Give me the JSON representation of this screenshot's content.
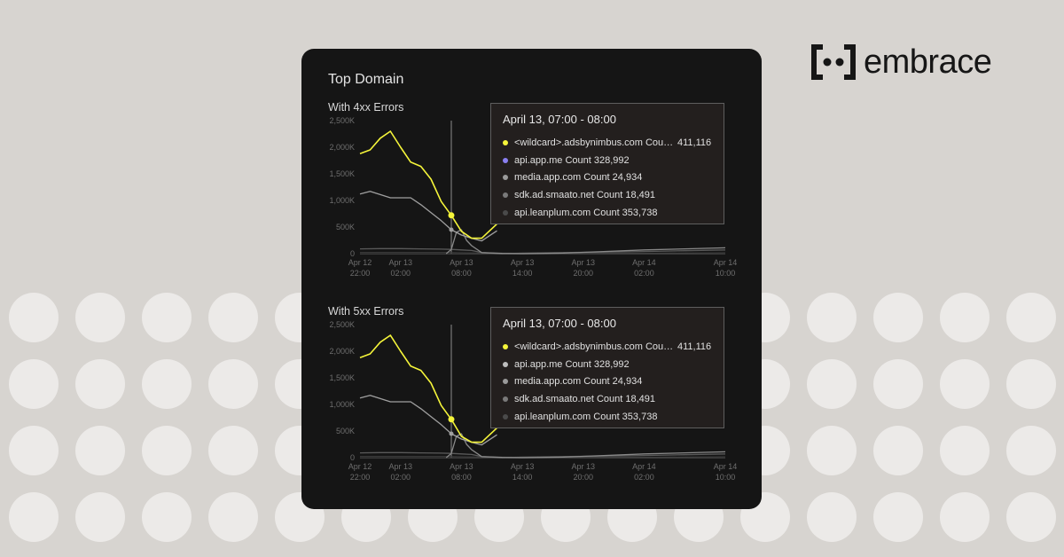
{
  "brand": {
    "name": "embrace",
    "logo_icon": "embrace-bracket-logo-icon"
  },
  "card": {
    "title": "Top Domain"
  },
  "panels": [
    {
      "label": "With 4xx Errors",
      "tooltip": {
        "title": "April 13, 07:00 - 08:00",
        "rows": [
          {
            "text": "<wildcard>.adsbynimbus.com Count 411,116",
            "extra": "411,116",
            "color": "#f5f53a"
          },
          {
            "text": "api.app.me Count 328,992",
            "extra": "",
            "color": "#8a7ff0"
          },
          {
            "text": "media.app.com Count 24,934",
            "extra": "",
            "color": "#9a9a9a"
          },
          {
            "text": "sdk.ad.smaato.net Count 18,491",
            "extra": "",
            "color": "#7a7a7a"
          },
          {
            "text": "api.leanplum.com Count 353,738",
            "extra": "",
            "color": "#4a4a4a"
          }
        ]
      }
    },
    {
      "label": "With 5xx Errors",
      "tooltip": {
        "title": "April 13, 07:00 - 08:00",
        "rows": [
          {
            "text": "<wildcard>.adsbynimbus.com Count 411,116",
            "extra": "411,116",
            "color": "#f5f53a"
          },
          {
            "text": "api.app.me Count 328,992",
            "extra": "",
            "color": "#bdbdbd"
          },
          {
            "text": "media.app.com Count 24,934",
            "extra": "",
            "color": "#9a9a9a"
          },
          {
            "text": "sdk.ad.smaato.net Count 18,491",
            "extra": "",
            "color": "#7a7a7a"
          },
          {
            "text": "api.leanplum.com Count 353,738",
            "extra": "",
            "color": "#4a4a4a"
          }
        ]
      }
    }
  ],
  "chart_data": [
    {
      "type": "line",
      "title": "With 4xx Errors",
      "ylim": [
        0,
        2500
      ],
      "y_ticks": [
        {
          "value": 0,
          "label": "0"
        },
        {
          "value": 500,
          "label": "500K"
        },
        {
          "value": 1000,
          "label": "1,000K"
        },
        {
          "value": 1500,
          "label": "1,500K"
        },
        {
          "value": 2000,
          "label": "2,000K"
        },
        {
          "value": 2500,
          "label": "2,500K"
        }
      ],
      "xlim": [
        0,
        36
      ],
      "x_ticks": [
        {
          "value": 0,
          "line1": "Apr 12",
          "line2": "22:00"
        },
        {
          "value": 4,
          "line1": "Apr 13",
          "line2": "02:00"
        },
        {
          "value": 10,
          "line1": "Apr 13",
          "line2": "08:00"
        },
        {
          "value": 16,
          "line1": "Apr 13",
          "line2": "14:00"
        },
        {
          "value": 22,
          "line1": "Apr 13",
          "line2": "20:00"
        },
        {
          "value": 28,
          "line1": "Apr 14",
          "line2": "02:00"
        },
        {
          "value": 36,
          "line1": "Apr 14",
          "line2": "10:00"
        }
      ],
      "highlight_x": 9,
      "series": [
        {
          "color": "#f5f53a",
          "x": [
            0,
            1,
            2,
            3,
            4,
            5,
            6,
            7,
            8,
            9,
            10,
            11,
            12,
            13.5
          ],
          "values": [
            1880,
            1950,
            2170,
            2300,
            2000,
            1720,
            1640,
            1400,
            980,
            720,
            420,
            290,
            290,
            560
          ]
        },
        {
          "color": "#a0a0a0",
          "x": [
            0,
            1,
            2,
            3,
            4,
            5,
            6,
            7,
            8,
            9,
            10,
            11,
            12,
            13.5
          ],
          "values": [
            1120,
            1170,
            1110,
            1050,
            1050,
            1050,
            920,
            770,
            620,
            450,
            350,
            290,
            240,
            430
          ]
        },
        {
          "color": "#8a8a8a",
          "x": [
            8.5,
            9,
            9.5,
            10,
            10.5,
            11,
            12,
            14,
            16,
            20,
            24,
            28,
            32,
            36
          ],
          "values": [
            0,
            80,
            400,
            450,
            250,
            150,
            20,
            5,
            0,
            10,
            40,
            70,
            90,
            110
          ]
        },
        {
          "color": "#5a5a5a",
          "x": [
            0,
            2,
            4,
            6,
            8,
            9,
            10,
            11,
            12,
            14,
            16,
            20,
            24,
            28,
            32,
            36
          ],
          "values": [
            90,
            95,
            95,
            90,
            85,
            80,
            70,
            60,
            20,
            0,
            10,
            20,
            30,
            40,
            55,
            70
          ]
        },
        {
          "color": "#3e3e3e",
          "x": [
            0,
            4,
            8,
            10,
            12,
            16,
            20,
            24,
            28,
            32,
            36
          ],
          "values": [
            20,
            20,
            20,
            15,
            10,
            5,
            5,
            5,
            5,
            10,
            15
          ]
        }
      ]
    },
    {
      "type": "line",
      "title": "With 5xx Errors",
      "ylim": [
        0,
        2500
      ],
      "y_ticks": [
        {
          "value": 0,
          "label": "0"
        },
        {
          "value": 500,
          "label": "500K"
        },
        {
          "value": 1000,
          "label": "1,000K"
        },
        {
          "value": 1500,
          "label": "1,500K"
        },
        {
          "value": 2000,
          "label": "2,000K"
        },
        {
          "value": 2500,
          "label": "2,500K"
        }
      ],
      "xlim": [
        0,
        36
      ],
      "x_ticks": [
        {
          "value": 0,
          "line1": "Apr 12",
          "line2": "22:00"
        },
        {
          "value": 4,
          "line1": "Apr 13",
          "line2": "02:00"
        },
        {
          "value": 10,
          "line1": "Apr 13",
          "line2": "08:00"
        },
        {
          "value": 16,
          "line1": "Apr 13",
          "line2": "14:00"
        },
        {
          "value": 22,
          "line1": "Apr 13",
          "line2": "20:00"
        },
        {
          "value": 28,
          "line1": "Apr 14",
          "line2": "02:00"
        },
        {
          "value": 36,
          "line1": "Apr 14",
          "line2": "10:00"
        }
      ],
      "highlight_x": 9,
      "series": [
        {
          "color": "#f5f53a",
          "x": [
            0,
            1,
            2,
            3,
            4,
            5,
            6,
            7,
            8,
            9,
            10,
            11,
            12,
            13.5
          ],
          "values": [
            1880,
            1950,
            2170,
            2300,
            2000,
            1720,
            1640,
            1400,
            980,
            720,
            400,
            290,
            290,
            560
          ]
        },
        {
          "color": "#a0a0a0",
          "x": [
            0,
            1,
            2,
            3,
            4,
            5,
            6,
            7,
            8,
            9,
            10,
            11,
            12,
            13.5
          ],
          "values": [
            1120,
            1170,
            1110,
            1050,
            1050,
            1050,
            920,
            770,
            620,
            450,
            350,
            290,
            240,
            430
          ]
        },
        {
          "color": "#8a8a8a",
          "x": [
            8.5,
            9,
            9.5,
            10,
            10.5,
            11,
            12,
            14,
            16,
            20,
            24,
            28,
            32,
            36
          ],
          "values": [
            0,
            80,
            400,
            450,
            250,
            150,
            20,
            5,
            0,
            10,
            40,
            70,
            90,
            110
          ]
        },
        {
          "color": "#5a5a5a",
          "x": [
            0,
            2,
            4,
            6,
            8,
            9,
            10,
            11,
            12,
            14,
            16,
            20,
            24,
            28,
            32,
            36
          ],
          "values": [
            90,
            95,
            95,
            90,
            85,
            80,
            70,
            60,
            20,
            0,
            10,
            20,
            30,
            40,
            55,
            70
          ]
        },
        {
          "color": "#3e3e3e",
          "x": [
            0,
            4,
            8,
            10,
            12,
            16,
            20,
            24,
            28,
            32,
            36
          ],
          "values": [
            20,
            20,
            20,
            15,
            10,
            5,
            5,
            5,
            5,
            10,
            15
          ]
        }
      ]
    }
  ]
}
